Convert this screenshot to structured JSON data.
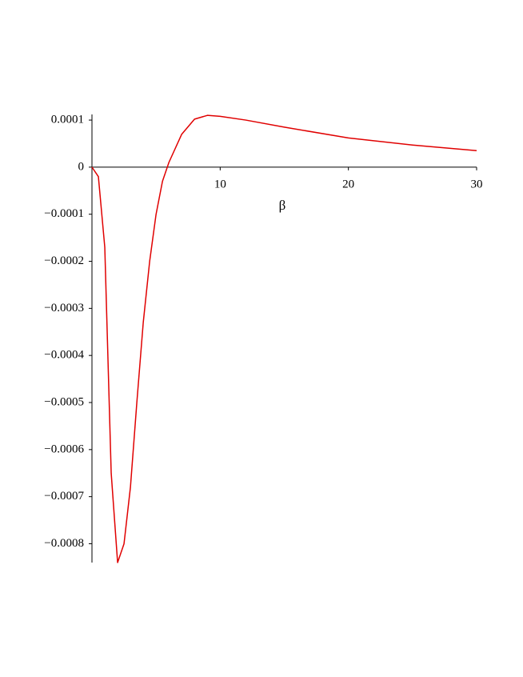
{
  "chart_data": {
    "type": "line",
    "x_label": "β",
    "x": [
      0,
      0.5,
      1,
      1.5,
      2,
      2.5,
      3,
      3.5,
      4,
      4.5,
      5,
      5.5,
      6,
      7,
      8,
      9,
      10,
      12,
      15,
      20,
      25,
      30
    ],
    "values": [
      0,
      -2e-05,
      -0.00017,
      -0.00065,
      -0.00084,
      -0.0008,
      -0.00068,
      -0.0005,
      -0.00033,
      -0.0002,
      -0.0001,
      -3e-05,
      1e-05,
      7e-05,
      0.000102,
      0.00011,
      0.000108,
      0.0001,
      8.5e-05,
      6.2e-05,
      4.7e-05,
      3.5e-05
    ],
    "color": "#e00000",
    "xlim": [
      0,
      30
    ],
    "ylim": [
      -0.00084,
      0.000112
    ],
    "xticks": [
      10,
      20,
      30
    ],
    "yticks": [
      0.0001,
      0,
      {
        "value": -0.0001,
        "label": "−0.0001"
      },
      {
        "value": -0.0002,
        "label": "−0.0002"
      },
      {
        "value": -0.0003,
        "label": "−0.0003"
      },
      {
        "value": -0.0004,
        "label": "−0.0004"
      },
      {
        "value": -0.0005,
        "label": "−0.0005"
      },
      {
        "value": -0.0006,
        "label": "−0.0006"
      },
      {
        "value": -0.0007,
        "label": "−0.0007"
      },
      {
        "value": -0.0008,
        "label": "−0.0008"
      }
    ]
  }
}
